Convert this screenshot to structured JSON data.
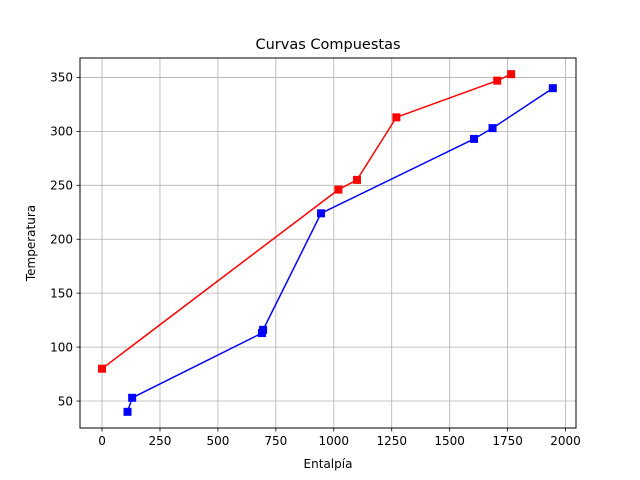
{
  "chart_data": {
    "type": "line",
    "title": "Curvas Compuestas",
    "xlabel": "Entalpía",
    "ylabel": "Temperatura",
    "xlim": [
      -95,
      2045
    ],
    "ylim": [
      25,
      368
    ],
    "xticks": [
      0,
      250,
      500,
      750,
      1000,
      1250,
      1500,
      1750,
      2000
    ],
    "yticks": [
      50,
      100,
      150,
      200,
      250,
      300,
      350
    ],
    "grid": true,
    "series": [
      {
        "color": "#ff0000",
        "marker": "square",
        "points": [
          {
            "x": 0,
            "y": 80
          },
          {
            "x": 1020,
            "y": 246
          },
          {
            "x": 1100,
            "y": 255
          },
          {
            "x": 1270,
            "y": 313
          },
          {
            "x": 1705,
            "y": 347
          },
          {
            "x": 1765,
            "y": 353
          }
        ]
      },
      {
        "color": "#0000ff",
        "marker": "square",
        "points": [
          {
            "x": 110,
            "y": 40
          },
          {
            "x": 130,
            "y": 53
          },
          {
            "x": 690,
            "y": 113
          },
          {
            "x": 695,
            "y": 116
          },
          {
            "x": 945,
            "y": 224
          },
          {
            "x": 1605,
            "y": 293
          },
          {
            "x": 1685,
            "y": 303
          },
          {
            "x": 1945,
            "y": 340
          }
        ]
      }
    ]
  }
}
